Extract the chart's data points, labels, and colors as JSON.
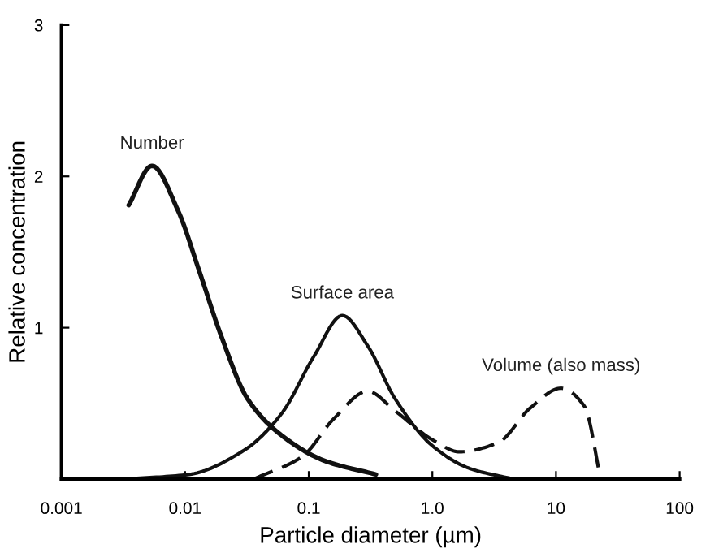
{
  "chart_data": {
    "type": "line",
    "xlabel": "Particle diameter (µm)",
    "ylabel": "Relative concentration",
    "log": "x",
    "xlim": [
      0.001,
      100
    ],
    "xticks": [
      {
        "value": 0.001,
        "label": "0.001"
      },
      {
        "value": 0.01,
        "label": "0.01"
      },
      {
        "value": 0.1,
        "label": "0.1"
      },
      {
        "value": 1,
        "label": "1.0"
      },
      {
        "value": 10,
        "label": "10"
      },
      {
        "value": 100,
        "label": "100"
      }
    ],
    "ylim": [
      0,
      3
    ],
    "yticks": [
      1,
      2,
      3
    ],
    "grid": false,
    "legend": false,
    "marker": "none",
    "series": [
      {
        "name": "Number",
        "color": "#111111",
        "line_style": "solid",
        "x": [
          0.0035,
          0.0054,
          0.0087,
          0.0132,
          0.0195,
          0.032,
          0.06,
          0.135,
          0.35
        ],
        "values": [
          1.81,
          2.07,
          1.78,
          1.36,
          0.95,
          0.53,
          0.29,
          0.12,
          0.03
        ]
      },
      {
        "name": "Surface area",
        "color": "#111111",
        "line_style": "solid",
        "x": [
          0.0032,
          0.0107,
          0.03,
          0.06,
          0.11,
          0.187,
          0.3,
          0.5,
          1.0,
          2.0,
          4.5
        ],
        "values": [
          0,
          0.03,
          0.19,
          0.43,
          0.81,
          1.08,
          0.88,
          0.53,
          0.22,
          0.07,
          0
        ]
      },
      {
        "name": "Volume (also mass)",
        "color": "#111111",
        "line_style": "dashed",
        "x": [
          0.036,
          0.089,
          0.16,
          0.3,
          0.5,
          1.0,
          1.66,
          3.4,
          6.2,
          11,
          17,
          23
        ],
        "values": [
          0,
          0.15,
          0.4,
          0.58,
          0.45,
          0.26,
          0.18,
          0.24,
          0.47,
          0.6,
          0.48,
          0
        ]
      }
    ]
  }
}
